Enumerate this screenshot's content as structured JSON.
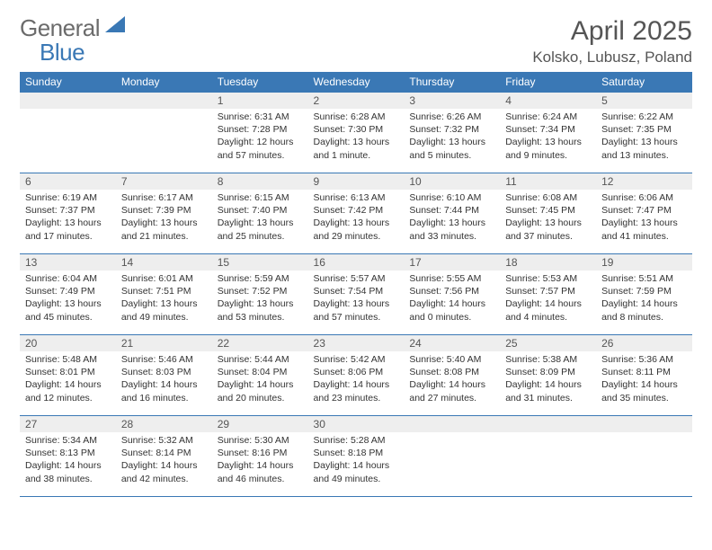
{
  "brand": {
    "part1": "General",
    "part2": "Blue"
  },
  "title": "April 2025",
  "location": "Kolsko, Lubusz, Poland",
  "colors": {
    "header_bg": "#3a78b5",
    "header_text": "#ffffff",
    "daynum_bg": "#eeeeee",
    "border": "#3a78b5",
    "text": "#333333"
  },
  "weekdays": [
    "Sunday",
    "Monday",
    "Tuesday",
    "Wednesday",
    "Thursday",
    "Friday",
    "Saturday"
  ],
  "weeks": [
    [
      {
        "n": "",
        "sr": "",
        "ss": "",
        "dl": ""
      },
      {
        "n": "",
        "sr": "",
        "ss": "",
        "dl": ""
      },
      {
        "n": "1",
        "sr": "Sunrise: 6:31 AM",
        "ss": "Sunset: 7:28 PM",
        "dl": "Daylight: 12 hours and 57 minutes."
      },
      {
        "n": "2",
        "sr": "Sunrise: 6:28 AM",
        "ss": "Sunset: 7:30 PM",
        "dl": "Daylight: 13 hours and 1 minute."
      },
      {
        "n": "3",
        "sr": "Sunrise: 6:26 AM",
        "ss": "Sunset: 7:32 PM",
        "dl": "Daylight: 13 hours and 5 minutes."
      },
      {
        "n": "4",
        "sr": "Sunrise: 6:24 AM",
        "ss": "Sunset: 7:34 PM",
        "dl": "Daylight: 13 hours and 9 minutes."
      },
      {
        "n": "5",
        "sr": "Sunrise: 6:22 AM",
        "ss": "Sunset: 7:35 PM",
        "dl": "Daylight: 13 hours and 13 minutes."
      }
    ],
    [
      {
        "n": "6",
        "sr": "Sunrise: 6:19 AM",
        "ss": "Sunset: 7:37 PM",
        "dl": "Daylight: 13 hours and 17 minutes."
      },
      {
        "n": "7",
        "sr": "Sunrise: 6:17 AM",
        "ss": "Sunset: 7:39 PM",
        "dl": "Daylight: 13 hours and 21 minutes."
      },
      {
        "n": "8",
        "sr": "Sunrise: 6:15 AM",
        "ss": "Sunset: 7:40 PM",
        "dl": "Daylight: 13 hours and 25 minutes."
      },
      {
        "n": "9",
        "sr": "Sunrise: 6:13 AM",
        "ss": "Sunset: 7:42 PM",
        "dl": "Daylight: 13 hours and 29 minutes."
      },
      {
        "n": "10",
        "sr": "Sunrise: 6:10 AM",
        "ss": "Sunset: 7:44 PM",
        "dl": "Daylight: 13 hours and 33 minutes."
      },
      {
        "n": "11",
        "sr": "Sunrise: 6:08 AM",
        "ss": "Sunset: 7:45 PM",
        "dl": "Daylight: 13 hours and 37 minutes."
      },
      {
        "n": "12",
        "sr": "Sunrise: 6:06 AM",
        "ss": "Sunset: 7:47 PM",
        "dl": "Daylight: 13 hours and 41 minutes."
      }
    ],
    [
      {
        "n": "13",
        "sr": "Sunrise: 6:04 AM",
        "ss": "Sunset: 7:49 PM",
        "dl": "Daylight: 13 hours and 45 minutes."
      },
      {
        "n": "14",
        "sr": "Sunrise: 6:01 AM",
        "ss": "Sunset: 7:51 PM",
        "dl": "Daylight: 13 hours and 49 minutes."
      },
      {
        "n": "15",
        "sr": "Sunrise: 5:59 AM",
        "ss": "Sunset: 7:52 PM",
        "dl": "Daylight: 13 hours and 53 minutes."
      },
      {
        "n": "16",
        "sr": "Sunrise: 5:57 AM",
        "ss": "Sunset: 7:54 PM",
        "dl": "Daylight: 13 hours and 57 minutes."
      },
      {
        "n": "17",
        "sr": "Sunrise: 5:55 AM",
        "ss": "Sunset: 7:56 PM",
        "dl": "Daylight: 14 hours and 0 minutes."
      },
      {
        "n": "18",
        "sr": "Sunrise: 5:53 AM",
        "ss": "Sunset: 7:57 PM",
        "dl": "Daylight: 14 hours and 4 minutes."
      },
      {
        "n": "19",
        "sr": "Sunrise: 5:51 AM",
        "ss": "Sunset: 7:59 PM",
        "dl": "Daylight: 14 hours and 8 minutes."
      }
    ],
    [
      {
        "n": "20",
        "sr": "Sunrise: 5:48 AM",
        "ss": "Sunset: 8:01 PM",
        "dl": "Daylight: 14 hours and 12 minutes."
      },
      {
        "n": "21",
        "sr": "Sunrise: 5:46 AM",
        "ss": "Sunset: 8:03 PM",
        "dl": "Daylight: 14 hours and 16 minutes."
      },
      {
        "n": "22",
        "sr": "Sunrise: 5:44 AM",
        "ss": "Sunset: 8:04 PM",
        "dl": "Daylight: 14 hours and 20 minutes."
      },
      {
        "n": "23",
        "sr": "Sunrise: 5:42 AM",
        "ss": "Sunset: 8:06 PM",
        "dl": "Daylight: 14 hours and 23 minutes."
      },
      {
        "n": "24",
        "sr": "Sunrise: 5:40 AM",
        "ss": "Sunset: 8:08 PM",
        "dl": "Daylight: 14 hours and 27 minutes."
      },
      {
        "n": "25",
        "sr": "Sunrise: 5:38 AM",
        "ss": "Sunset: 8:09 PM",
        "dl": "Daylight: 14 hours and 31 minutes."
      },
      {
        "n": "26",
        "sr": "Sunrise: 5:36 AM",
        "ss": "Sunset: 8:11 PM",
        "dl": "Daylight: 14 hours and 35 minutes."
      }
    ],
    [
      {
        "n": "27",
        "sr": "Sunrise: 5:34 AM",
        "ss": "Sunset: 8:13 PM",
        "dl": "Daylight: 14 hours and 38 minutes."
      },
      {
        "n": "28",
        "sr": "Sunrise: 5:32 AM",
        "ss": "Sunset: 8:14 PM",
        "dl": "Daylight: 14 hours and 42 minutes."
      },
      {
        "n": "29",
        "sr": "Sunrise: 5:30 AM",
        "ss": "Sunset: 8:16 PM",
        "dl": "Daylight: 14 hours and 46 minutes."
      },
      {
        "n": "30",
        "sr": "Sunrise: 5:28 AM",
        "ss": "Sunset: 8:18 PM",
        "dl": "Daylight: 14 hours and 49 minutes."
      },
      {
        "n": "",
        "sr": "",
        "ss": "",
        "dl": ""
      },
      {
        "n": "",
        "sr": "",
        "ss": "",
        "dl": ""
      },
      {
        "n": "",
        "sr": "",
        "ss": "",
        "dl": ""
      }
    ]
  ]
}
